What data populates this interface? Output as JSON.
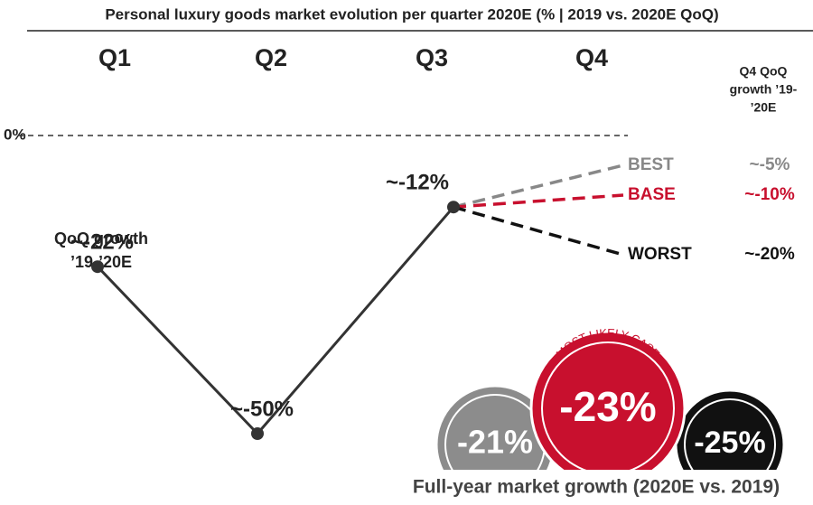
{
  "chart_data": {
    "type": "line",
    "title": "Personal luxury goods market evolution per quarter 2020E (% | 2019 vs. 2020E QoQ)",
    "categories": [
      "Q1",
      "Q2",
      "Q3",
      "Q4"
    ],
    "ylim": [
      -50,
      0
    ],
    "yticks": [
      {
        "value": 0,
        "label": "0%"
      }
    ],
    "annotation": [
      "QoQ growth",
      "’19-’20E"
    ],
    "series": [
      {
        "color": "#333333",
        "values": [
          -22,
          -50,
          -12,
          null
        ],
        "value_labels": [
          "~-22%",
          "~-50%",
          "~-12%",
          null
        ]
      }
    ],
    "q4_header": [
      "Q4 QoQ",
      "growth ’19-",
      "’20E"
    ],
    "scenarios": [
      {
        "name": "BEST",
        "color": "#888888",
        "value": -5,
        "value_label": "~-5%"
      },
      {
        "name": "BASE",
        "color": "#c8102e",
        "value": -10,
        "value_label": "~-10%"
      },
      {
        "name": "WORST",
        "color": "#111111",
        "value": -20,
        "value_label": "~-20%"
      }
    ],
    "full_year": {
      "title": "Full-year market growth (2020E vs. 2019)",
      "values": [
        -21,
        -23,
        -25
      ],
      "value_labels": [
        "-21%",
        "-23%",
        "-25%"
      ],
      "colors": [
        "#8c8c8c",
        "#c8102e",
        "#111111"
      ],
      "highlight_label": "MOST LIKELY CASE"
    }
  }
}
